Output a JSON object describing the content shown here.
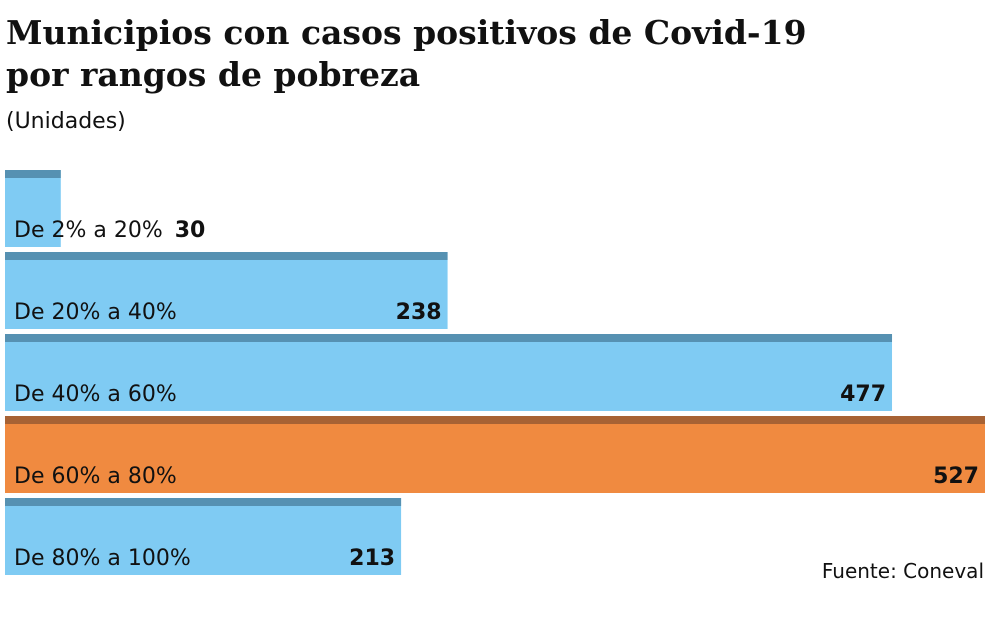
{
  "chart_data": {
    "type": "bar",
    "orientation": "horizontal",
    "title": "Municipios con casos positivos de Covid-19 por rangos de pobreza",
    "subtitle": "(Unidades)",
    "source": "Fuente: Coneval",
    "categories": [
      "De 2% a 20%",
      "De 20% a 40%",
      "De 40% a 60%",
      "De 60% a 80%",
      "De 80% a 100%"
    ],
    "values": [
      30,
      238,
      477,
      527,
      213
    ],
    "colors": [
      "#7fcbf3",
      "#7fcbf3",
      "#7fcbf3",
      "#f08a40",
      "#7fcbf3"
    ]
  }
}
